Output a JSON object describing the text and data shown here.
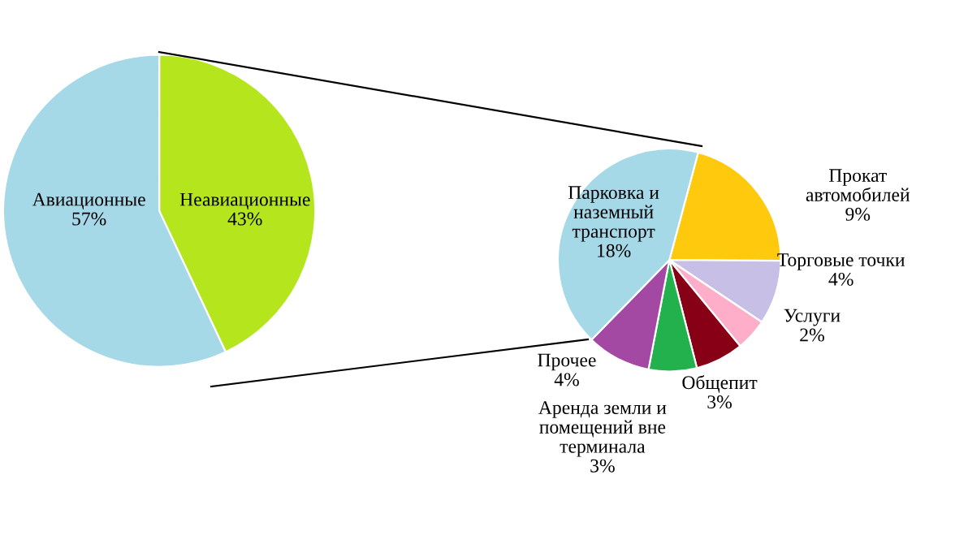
{
  "chart_data": [
    {
      "type": "pie",
      "categories": [
        "Неавиационные",
        "Авиационные"
      ],
      "values": [
        43,
        57
      ],
      "colors": [
        "#b5e61d",
        "#a6d9e8"
      ],
      "value_labels": [
        "43%",
        "57%"
      ]
    },
    {
      "type": "pie",
      "categories": [
        "Прокат\nавтомобилей",
        "Торговые точки",
        "Услуги",
        "Общепит",
        "Аренда земли и\nпомещений вне\nтерминала",
        "Прочее",
        "Парковка и\nназемный\nтранспорт"
      ],
      "values": [
        9,
        4,
        2,
        3,
        3,
        4,
        18
      ],
      "colors": [
        "#ffc90e",
        "#c8bfe7",
        "#ffaec9",
        "#880015",
        "#22b14c",
        "#a349a4",
        "#a6d9e8"
      ],
      "value_labels": [
        "9%",
        "4%",
        "2%",
        "3%",
        "3%",
        "4%",
        "18%"
      ]
    }
  ]
}
